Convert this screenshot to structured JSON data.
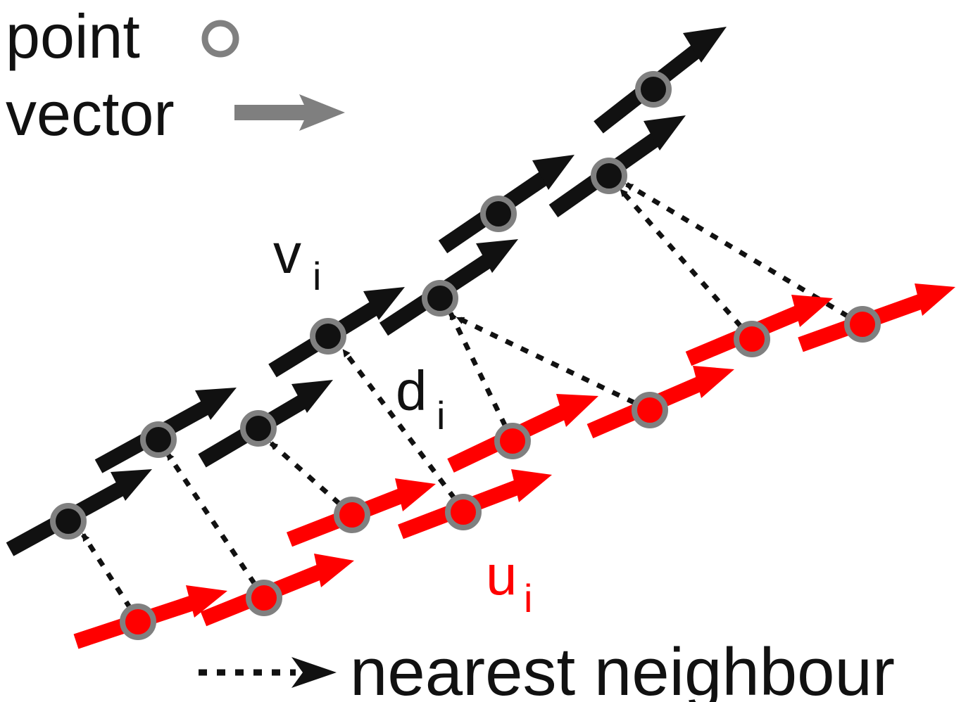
{
  "legend": {
    "point_label": "point",
    "vector_label": "vector",
    "neighbour_label": "nearest neighbour"
  },
  "annotations": {
    "v": "v",
    "v_sub": "i",
    "d": "d",
    "d_sub": "i",
    "u": "u",
    "u_sub": "i"
  },
  "colors": {
    "black_set": "#111111",
    "red_set": "#ff0000",
    "point_outline": "#808080",
    "legend_vector": "#7f7f7f"
  }
}
